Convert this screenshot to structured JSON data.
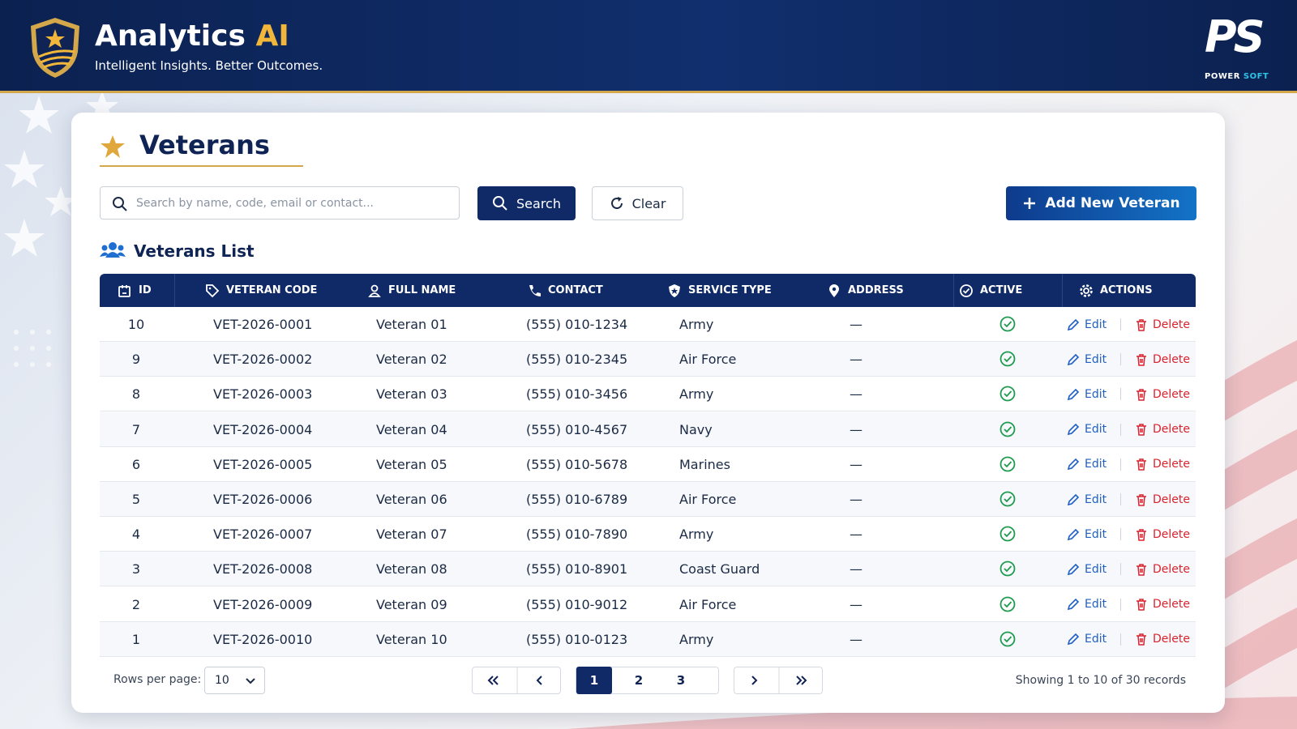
{
  "header": {
    "title_main": "Analytics",
    "title_accent": "AI",
    "tagline": "Intelligent Insights. Better Outcomes.",
    "brand_logo": "PS",
    "brand_name": "POWER",
    "brand_name_accent": "SOFT"
  },
  "page": {
    "title": "Veterans"
  },
  "toolbar": {
    "search_placeholder": "Search by name, code, email or contact...",
    "search_button": "Search",
    "clear_button": "Clear",
    "add_button": "Add New Veteran"
  },
  "list_title": "Veterans List",
  "table": {
    "columns": [
      "ID",
      "VETERAN CODE",
      "FULL NAME",
      "CONTACT",
      "SERVICE TYPE",
      "ADDRESS",
      "ACTIVE",
      "ACTIONS"
    ],
    "rows": [
      [
        10,
        "VET-2026-0001",
        "Veteran 01",
        "(555) 010-1234",
        "Army",
        "—",
        true
      ],
      [
        9,
        "VET-2026-0002",
        "Veteran 02",
        "(555) 010-2345",
        "Air Force",
        "—",
        true
      ],
      [
        8,
        "VET-2026-0003",
        "Veteran 03",
        "(555) 010-3456",
        "Army",
        "—",
        true
      ],
      [
        7,
        "VET-2026-0004",
        "Veteran 04",
        "(555) 010-4567",
        "Navy",
        "—",
        true
      ],
      [
        6,
        "VET-2026-0005",
        "Veteran 05",
        "(555) 010-5678",
        "Marines",
        "—",
        true
      ],
      [
        5,
        "VET-2026-0006",
        "Veteran 06",
        "(555) 010-6789",
        "Air Force",
        "—",
        true
      ],
      [
        4,
        "VET-2026-0007",
        "Veteran 07",
        "(555) 010-7890",
        "Army",
        "—",
        true
      ],
      [
        3,
        "VET-2026-0008",
        "Veteran 08",
        "(555) 010-8901",
        "Coast Guard",
        "—",
        true
      ],
      [
        2,
        "VET-2026-0009",
        "Veteran 09",
        "(555) 010-9012",
        "Air Force",
        "—",
        true
      ],
      [
        1,
        "VET-2026-0010",
        "Veteran 10",
        "(555) 010-0123",
        "Army",
        "—",
        true
      ]
    ],
    "row_actions": [
      "Edit",
      "Delete"
    ]
  },
  "pagination": {
    "rows_per_page_label": "Rows per page:",
    "rows_per_page": 10,
    "pages": [
      1,
      2,
      3
    ],
    "current_page": 1,
    "summary": "Showing 1 to 10 of 30 records"
  }
}
